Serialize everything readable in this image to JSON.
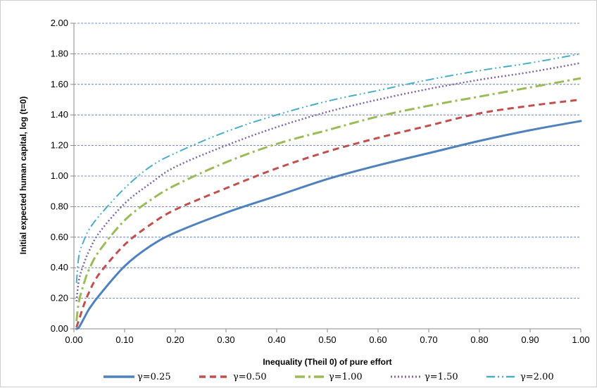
{
  "chart_data": {
    "type": "line",
    "xlabel": "Inequality (Theil 0) of pure effort",
    "ylabel": "Initial expected human capital,  log (t=0)",
    "xlim": [
      0,
      1
    ],
    "ylim": [
      0,
      2
    ],
    "x_ticks": [
      "0.00",
      "0.10",
      "0.20",
      "0.30",
      "0.40",
      "0.50",
      "0.60",
      "0.70",
      "0.80",
      "0.90",
      "1.00"
    ],
    "y_ticks": [
      "0.00",
      "0.20",
      "0.40",
      "0.60",
      "0.80",
      "1.00",
      "1.20",
      "1.40",
      "1.60",
      "1.80",
      "2.00"
    ],
    "grid": "horizontal dashed",
    "legend_position": "bottom",
    "x": [
      0.005,
      0.01,
      0.02,
      0.03,
      0.05,
      0.1,
      0.15,
      0.2,
      0.3,
      0.4,
      0.5,
      0.6,
      0.7,
      0.8,
      0.9,
      1.0
    ],
    "series": [
      {
        "name": "γ=0.25",
        "color": "#4f81bd",
        "dash": "solid",
        "values": [
          0.0,
          0.01,
          0.07,
          0.13,
          0.22,
          0.41,
          0.54,
          0.63,
          0.76,
          0.87,
          0.98,
          1.07,
          1.15,
          1.23,
          1.3,
          1.36
        ]
      },
      {
        "name": "γ=0.50",
        "color": "#c0504d",
        "dash": "dash",
        "values": [
          0.01,
          0.06,
          0.16,
          0.24,
          0.36,
          0.55,
          0.68,
          0.78,
          0.92,
          1.05,
          1.16,
          1.25,
          1.33,
          1.41,
          1.46,
          1.5
        ]
      },
      {
        "name": "γ=1.00",
        "color": "#9bbb59",
        "dash": "dashdot",
        "values": [
          0.05,
          0.18,
          0.3,
          0.39,
          0.51,
          0.71,
          0.84,
          0.94,
          1.09,
          1.21,
          1.3,
          1.39,
          1.46,
          1.52,
          1.58,
          1.64
        ]
      },
      {
        "name": "γ=1.50",
        "color": "#8064a2",
        "dash": "dot",
        "values": [
          0.18,
          0.32,
          0.43,
          0.51,
          0.63,
          0.82,
          0.95,
          1.06,
          1.2,
          1.32,
          1.42,
          1.5,
          1.57,
          1.63,
          1.68,
          1.74
        ]
      },
      {
        "name": "γ=2.00",
        "color": "#4bacc6",
        "dash": "dashdotdot",
        "values": [
          0.3,
          0.48,
          0.58,
          0.65,
          0.74,
          0.92,
          1.06,
          1.15,
          1.29,
          1.4,
          1.49,
          1.56,
          1.63,
          1.69,
          1.74,
          1.8
        ]
      }
    ]
  }
}
